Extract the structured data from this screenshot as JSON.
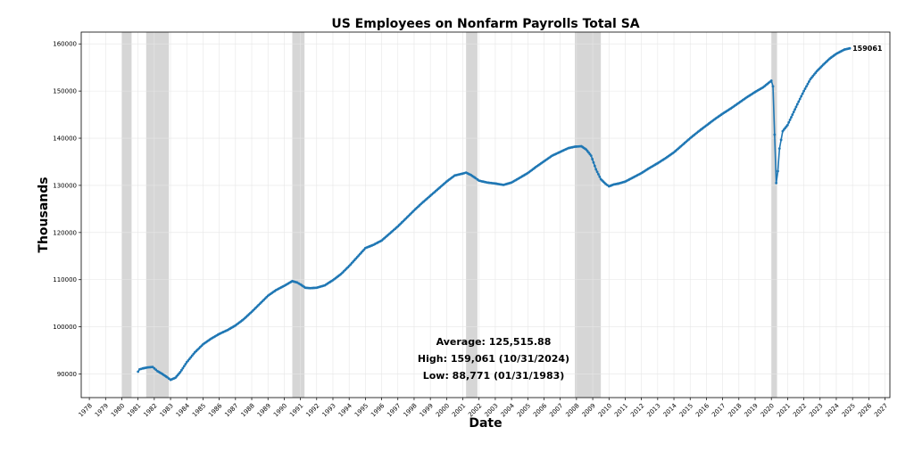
{
  "chart_data": {
    "type": "line",
    "title": "US Employees on Nonfarm Payrolls Total SA",
    "xlabel": "Date",
    "ylabel": "Thousands",
    "xlim": [
      1977.5,
      2027.3
    ],
    "ylim": [
      85000,
      162500
    ],
    "x_ticks": [
      1978,
      1979,
      1980,
      1981,
      1982,
      1983,
      1984,
      1985,
      1986,
      1987,
      1988,
      1989,
      1990,
      1991,
      1992,
      1993,
      1994,
      1995,
      1996,
      1997,
      1998,
      1999,
      2000,
      2001,
      2002,
      2003,
      2004,
      2005,
      2006,
      2007,
      2008,
      2009,
      2010,
      2011,
      2012,
      2013,
      2014,
      2015,
      2016,
      2017,
      2018,
      2019,
      2020,
      2021,
      2022,
      2023,
      2024,
      2025,
      2026,
      2027
    ],
    "y_ticks": [
      90000,
      100000,
      110000,
      120000,
      130000,
      140000,
      150000,
      160000
    ],
    "grid": true,
    "series_color": "#1f77b4",
    "recession_color": "#d6d6d6",
    "recessions": [
      [
        1980.0,
        1980.6
      ],
      [
        1981.5,
        1982.9
      ],
      [
        1990.5,
        1991.25
      ],
      [
        2001.2,
        2001.9
      ],
      [
        2007.9,
        2009.5
      ],
      [
        2020.0,
        2020.35
      ]
    ],
    "series": [
      {
        "anchors": [
          [
            1981.0,
            90500
          ],
          [
            1981.1,
            91000
          ],
          [
            1981.3,
            91200
          ],
          [
            1981.6,
            91400
          ],
          [
            1981.9,
            91500
          ],
          [
            1982.0,
            91200
          ],
          [
            1982.2,
            90600
          ],
          [
            1982.5,
            90000
          ],
          [
            1982.8,
            89300
          ],
          [
            1983.0,
            88771
          ],
          [
            1983.3,
            89200
          ],
          [
            1983.6,
            90400
          ],
          [
            1984.0,
            92500
          ],
          [
            1984.5,
            94600
          ],
          [
            1985.0,
            96300
          ],
          [
            1985.5,
            97500
          ],
          [
            1986.0,
            98500
          ],
          [
            1986.5,
            99300
          ],
          [
            1987.0,
            100300
          ],
          [
            1987.5,
            101600
          ],
          [
            1988.0,
            103200
          ],
          [
            1988.5,
            104900
          ],
          [
            1989.0,
            106600
          ],
          [
            1989.5,
            107800
          ],
          [
            1990.0,
            108700
          ],
          [
            1990.5,
            109700
          ],
          [
            1990.8,
            109400
          ],
          [
            1991.0,
            109000
          ],
          [
            1991.3,
            108300
          ],
          [
            1991.6,
            108200
          ],
          [
            1992.0,
            108300
          ],
          [
            1992.5,
            108800
          ],
          [
            1993.0,
            109900
          ],
          [
            1993.5,
            111200
          ],
          [
            1994.0,
            112900
          ],
          [
            1994.5,
            114800
          ],
          [
            1995.0,
            116700
          ],
          [
            1995.5,
            117400
          ],
          [
            1996.0,
            118300
          ],
          [
            1996.5,
            119800
          ],
          [
            1997.0,
            121300
          ],
          [
            1997.5,
            123000
          ],
          [
            1998.0,
            124700
          ],
          [
            1998.5,
            126300
          ],
          [
            1999.0,
            127800
          ],
          [
            1999.5,
            129300
          ],
          [
            2000.0,
            130800
          ],
          [
            2000.5,
            132100
          ],
          [
            2001.0,
            132500
          ],
          [
            2001.2,
            132700
          ],
          [
            2001.5,
            132200
          ],
          [
            2001.8,
            131500
          ],
          [
            2002.0,
            131000
          ],
          [
            2002.5,
            130600
          ],
          [
            2003.0,
            130400
          ],
          [
            2003.5,
            130100
          ],
          [
            2004.0,
            130600
          ],
          [
            2004.5,
            131600
          ],
          [
            2005.0,
            132600
          ],
          [
            2005.5,
            133900
          ],
          [
            2006.0,
            135100
          ],
          [
            2006.5,
            136300
          ],
          [
            2007.0,
            137100
          ],
          [
            2007.5,
            137900
          ],
          [
            2007.9,
            138200
          ],
          [
            2008.3,
            138300
          ],
          [
            2008.6,
            137600
          ],
          [
            2008.9,
            136300
          ],
          [
            2009.2,
            133400
          ],
          [
            2009.5,
            131300
          ],
          [
            2009.8,
            130300
          ],
          [
            2010.0,
            129800
          ],
          [
            2010.3,
            130200
          ],
          [
            2010.6,
            130400
          ],
          [
            2011.0,
            130800
          ],
          [
            2011.5,
            131700
          ],
          [
            2012.0,
            132600
          ],
          [
            2012.5,
            133700
          ],
          [
            2013.0,
            134700
          ],
          [
            2013.5,
            135800
          ],
          [
            2014.0,
            137000
          ],
          [
            2014.5,
            138500
          ],
          [
            2015.0,
            140000
          ],
          [
            2015.5,
            141400
          ],
          [
            2016.0,
            142700
          ],
          [
            2016.5,
            144000
          ],
          [
            2017.0,
            145200
          ],
          [
            2017.5,
            146300
          ],
          [
            2018.0,
            147500
          ],
          [
            2018.5,
            148700
          ],
          [
            2019.0,
            149800
          ],
          [
            2019.5,
            150800
          ],
          [
            2020.0,
            152200
          ],
          [
            2020.1,
            151000
          ],
          [
            2020.3,
            130500
          ],
          [
            2020.4,
            133000
          ],
          [
            2020.5,
            137800
          ],
          [
            2020.7,
            141500
          ],
          [
            2021.0,
            142800
          ],
          [
            2021.3,
            145000
          ],
          [
            2021.6,
            147200
          ],
          [
            2022.0,
            150000
          ],
          [
            2022.4,
            152500
          ],
          [
            2022.8,
            154200
          ],
          [
            2023.2,
            155600
          ],
          [
            2023.6,
            156900
          ],
          [
            2024.0,
            157900
          ],
          [
            2024.5,
            158800
          ],
          [
            2024.83,
            159061
          ]
        ]
      }
    ],
    "end_label": "159061",
    "stats": {
      "average": "Average: 125,515.88",
      "high": "High: 159,061 (10/31/2024)",
      "low": "Low: 88,771 (01/31/1983)"
    }
  }
}
